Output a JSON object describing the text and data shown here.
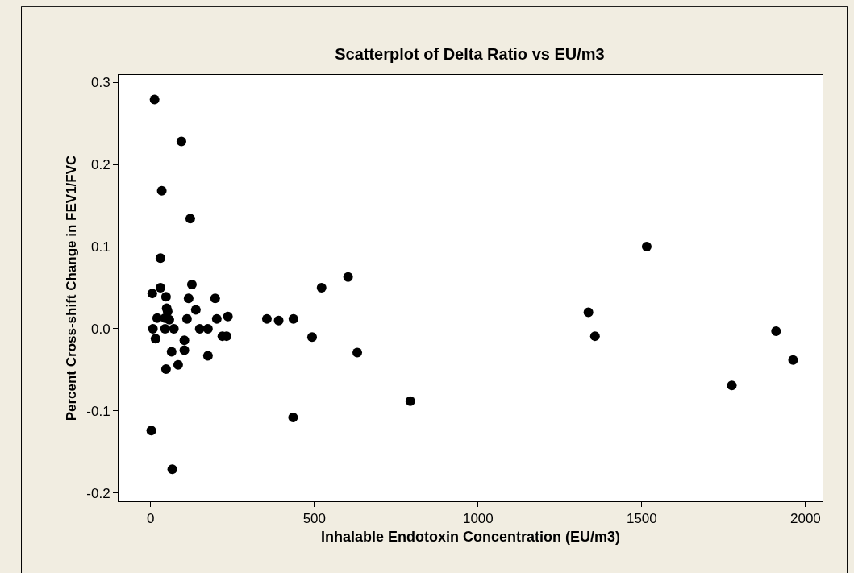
{
  "chart_data": {
    "type": "scatter",
    "title": "Scatterplot of Delta Ratio vs EU/m3",
    "xlabel": "Inhalable Endotoxin Concentration (EU/m3)",
    "ylabel": "Percent Cross-shift Change in FEV1/FVC",
    "x": [
      12,
      94,
      34,
      121,
      30,
      30,
      5,
      47,
      126,
      116,
      197,
      138,
      49,
      52,
      20,
      44,
      111,
      202,
      236,
      57,
      7,
      44,
      71,
      150,
      175,
      15,
      219,
      232,
      103,
      64,
      103,
      175,
      84,
      47,
      2,
      66,
      355,
      391,
      436,
      522,
      603,
      493,
      631,
      793,
      435,
      1337,
      1357,
      1515,
      1775,
      1910,
      1962
    ],
    "values": [
      0.279,
      0.228,
      0.168,
      0.134,
      0.086,
      0.05,
      0.043,
      0.039,
      0.054,
      0.037,
      0.037,
      0.023,
      0.025,
      0.021,
      0.013,
      0.013,
      0.012,
      0.012,
      0.015,
      0.011,
      0.0,
      0.0,
      0.0,
      0.0,
      0.0,
      -0.012,
      -0.009,
      -0.009,
      -0.014,
      -0.028,
      -0.026,
      -0.033,
      -0.044,
      -0.049,
      -0.124,
      -0.171,
      0.012,
      0.01,
      0.012,
      0.05,
      0.063,
      -0.01,
      -0.029,
      -0.088,
      -0.108,
      0.02,
      -0.009,
      0.1,
      -0.069,
      -0.003,
      -0.038
    ],
    "color": "#000000",
    "marker": "circle",
    "xlim": [
      -98,
      2052
    ],
    "xticks": [
      0,
      500,
      1000,
      1500,
      2000
    ],
    "ylim": [
      -0.21,
      0.309
    ],
    "yticks": [
      {
        "value": -0.2,
        "label": "-0.2"
      },
      {
        "value": -0.1,
        "label": "-0.1"
      },
      {
        "value": 0.0,
        "label": "0.0"
      },
      {
        "value": 0.1,
        "label": "0.1"
      },
      {
        "value": 0.2,
        "label": "0.2"
      },
      {
        "value": 0.3,
        "label": "0.3"
      }
    ],
    "legend": false
  }
}
